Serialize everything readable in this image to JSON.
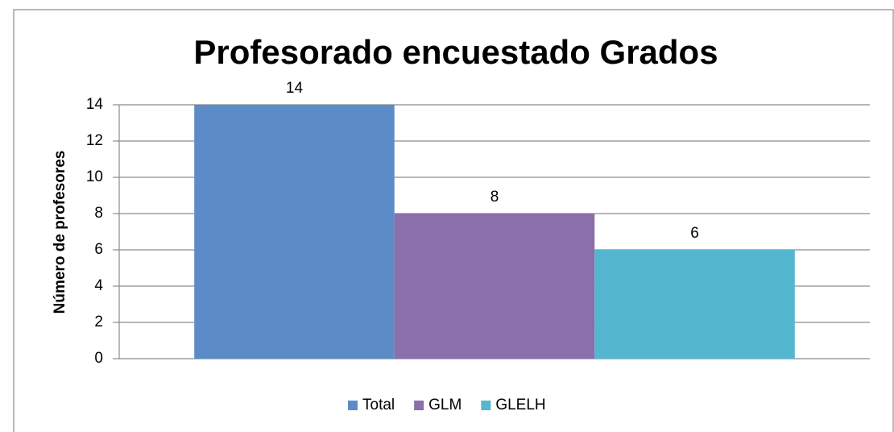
{
  "chart_data": {
    "type": "bar",
    "title": "Profesorado encuestado Grados",
    "y_label": "Número de profesores",
    "categories": [
      null
    ],
    "series": [
      {
        "name": "Total",
        "color": "#5b8cc8",
        "values": [
          14
        ]
      },
      {
        "name": "GLM",
        "color": "#8a6fab",
        "values": [
          8
        ]
      },
      {
        "name": "GLELH",
        "color": "#55b6cf",
        "values": [
          6
        ]
      }
    ],
    "ylim": [
      0,
      14
    ],
    "yticks": [
      0,
      2,
      4,
      6,
      8,
      10,
      12,
      14
    ],
    "grid": true,
    "legend": "bottom"
  }
}
